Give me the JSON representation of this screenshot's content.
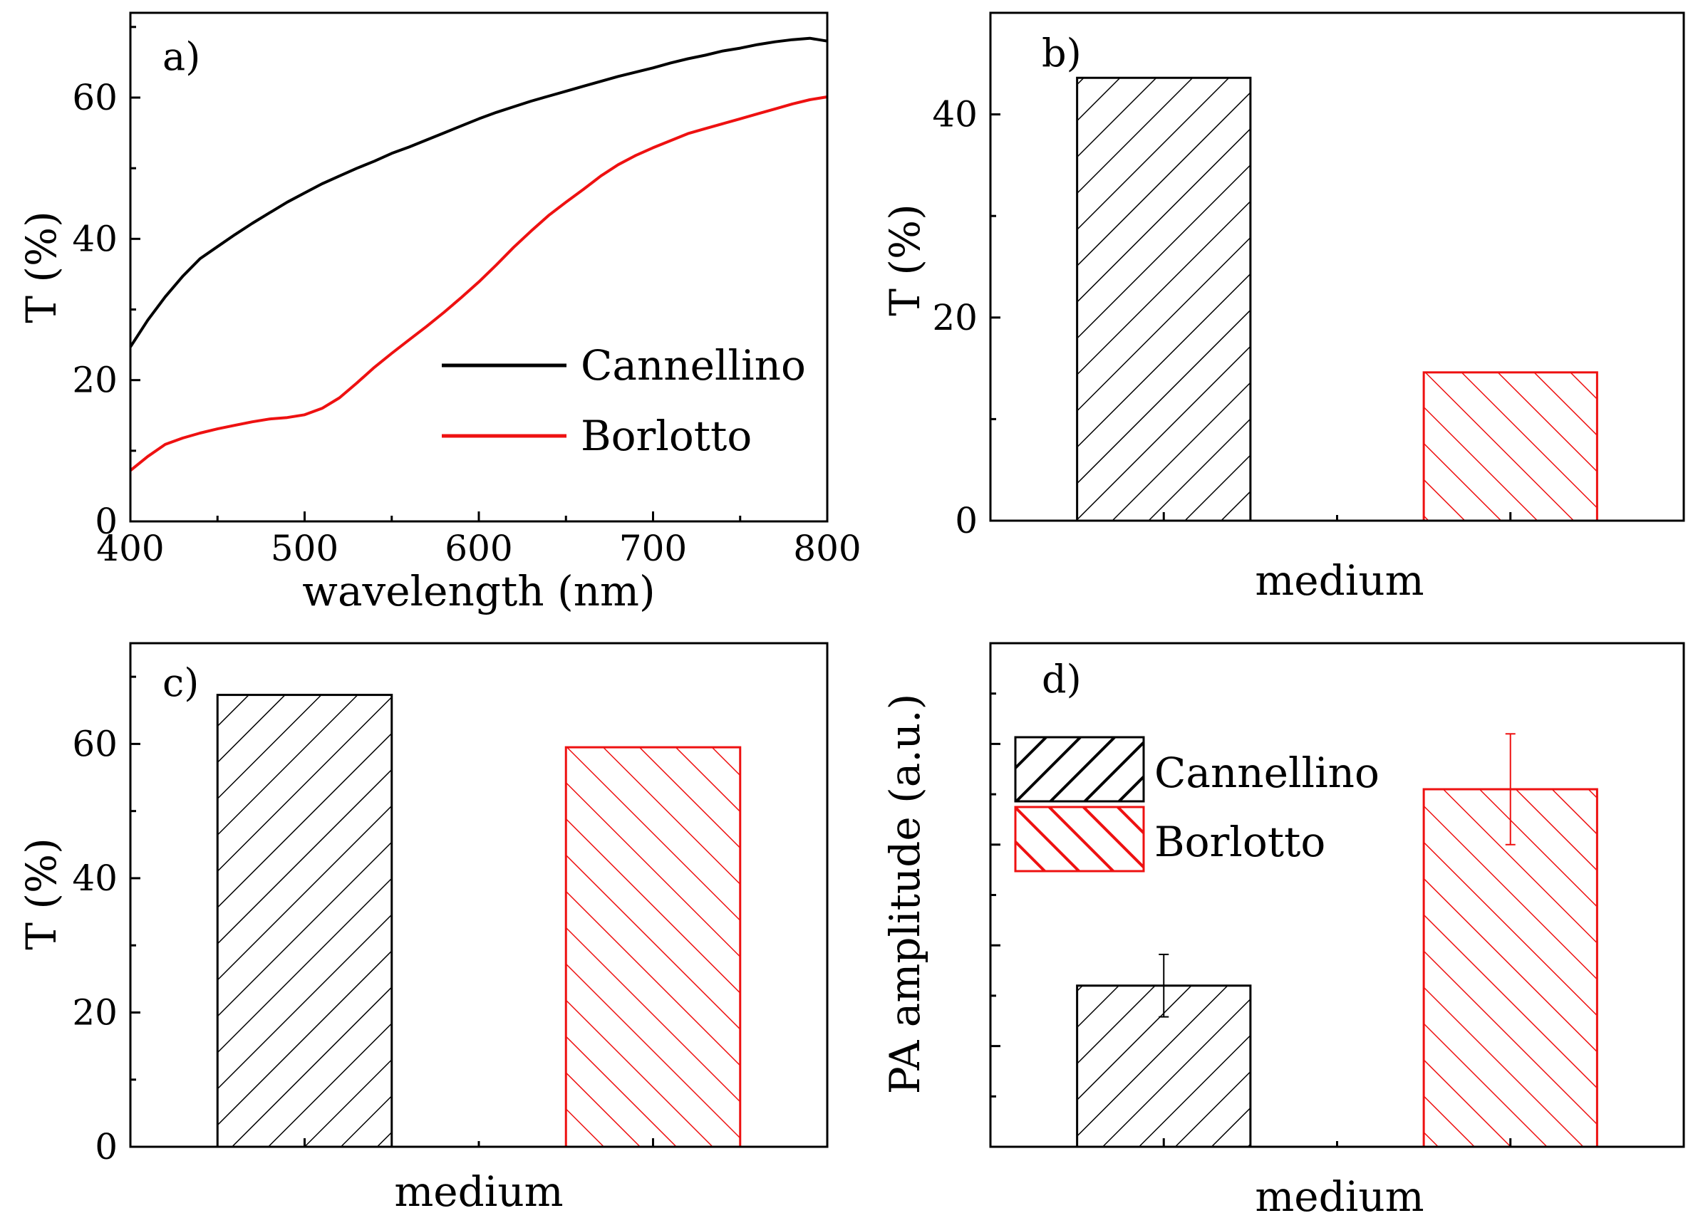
{
  "colors": {
    "cannellino": "#000000",
    "borlotto": "#ee1111"
  },
  "chart_data": [
    {
      "panel": "a)",
      "type": "line",
      "xlabel": "wavelength (nm)",
      "ylabel": "T (%)",
      "xlim": [
        400,
        800
      ],
      "ylim": [
        0,
        72
      ],
      "xticks": [
        400,
        500,
        600,
        700,
        800
      ],
      "yticks": [
        0,
        20,
        40,
        60
      ],
      "legend": {
        "position": "bottom-right",
        "entries": [
          "Cannellino",
          "Borlotto"
        ]
      },
      "series": [
        {
          "name": "Cannellino",
          "x": [
            400,
            410,
            420,
            430,
            440,
            450,
            460,
            470,
            480,
            490,
            500,
            510,
            520,
            530,
            540,
            550,
            560,
            570,
            580,
            590,
            600,
            610,
            620,
            630,
            640,
            650,
            660,
            670,
            680,
            690,
            700,
            710,
            720,
            730,
            740,
            750,
            760,
            770,
            780,
            790,
            800
          ],
          "y": [
            24.7,
            28.5,
            31.8,
            34.7,
            37.2,
            38.9,
            40.6,
            42.2,
            43.7,
            45.2,
            46.5,
            47.8,
            48.9,
            50.0,
            51.0,
            52.1,
            53.0,
            54.0,
            55.0,
            56.0,
            57.0,
            57.9,
            58.7,
            59.5,
            60.2,
            60.9,
            61.6,
            62.3,
            63.0,
            63.6,
            64.2,
            64.9,
            65.5,
            66.0,
            66.6,
            67.0,
            67.5,
            67.9,
            68.2,
            68.4,
            68.0
          ]
        },
        {
          "name": "Borlotto",
          "x": [
            400,
            410,
            420,
            430,
            440,
            450,
            460,
            470,
            480,
            490,
            500,
            510,
            520,
            530,
            540,
            550,
            560,
            570,
            580,
            590,
            600,
            610,
            620,
            630,
            640,
            650,
            660,
            670,
            680,
            690,
            700,
            710,
            720,
            730,
            740,
            750,
            760,
            770,
            780,
            790,
            800
          ],
          "y": [
            7.2,
            9.2,
            10.9,
            11.8,
            12.5,
            13.1,
            13.6,
            14.1,
            14.5,
            14.7,
            15.1,
            16.0,
            17.5,
            19.6,
            21.8,
            23.8,
            25.7,
            27.6,
            29.6,
            31.7,
            33.9,
            36.3,
            38.8,
            41.1,
            43.3,
            45.2,
            47.0,
            48.9,
            50.5,
            51.8,
            52.9,
            53.9,
            54.9,
            55.6,
            56.3,
            57.0,
            57.7,
            58.4,
            59.1,
            59.7,
            60.1
          ]
        }
      ]
    },
    {
      "panel": "b)",
      "type": "bar",
      "xlabel": "medium",
      "ylabel": "T (%)",
      "ylim": [
        0,
        50
      ],
      "yticks": [
        0,
        20,
        40
      ],
      "categories": [
        "Cannellino",
        "Borlotto"
      ],
      "values": [
        43.6,
        14.6
      ]
    },
    {
      "panel": "c)",
      "type": "bar",
      "xlabel": "medium",
      "ylabel": "T (%)",
      "ylim": [
        0,
        75
      ],
      "yticks": [
        0,
        20,
        40,
        60
      ],
      "categories": [
        "Cannellino",
        "Borlotto"
      ],
      "values": [
        67.3,
        59.5
      ]
    },
    {
      "panel": "d)",
      "type": "bar",
      "xlabel": "medium",
      "ylabel": "PA amplitude (a.u.)",
      "ylim": [
        0,
        1
      ],
      "categories": [
        "Cannellino",
        "Borlotto"
      ],
      "values": [
        0.32,
        0.71
      ],
      "errors": [
        0.062,
        0.11
      ],
      "legend": {
        "position": "top-left",
        "entries": [
          "Cannellino",
          "Borlotto"
        ]
      }
    }
  ]
}
